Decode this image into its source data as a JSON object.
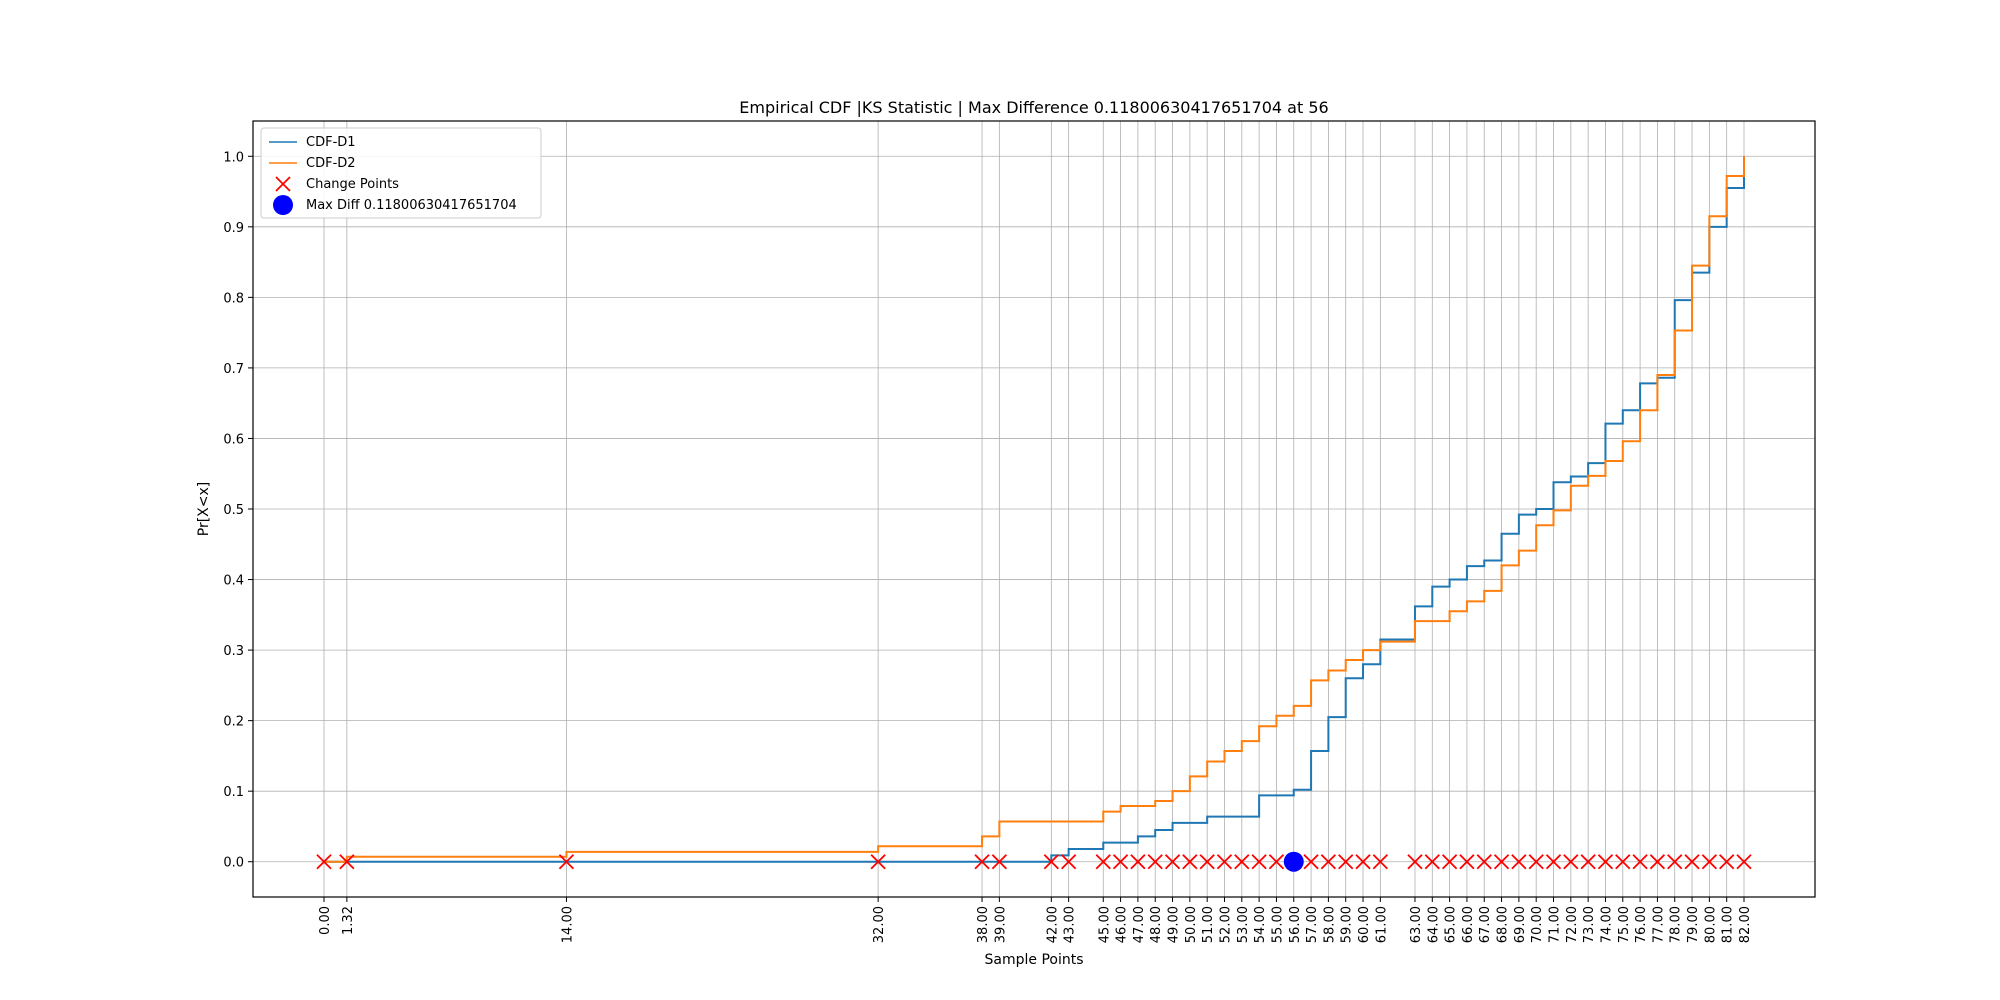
{
  "chart_data": {
    "type": "line",
    "title": "Empirical CDF |KS Statistic | Max Difference 0.11800630417651704 at 56",
    "xlabel": "Sample Points",
    "ylabel": "Pr[X<x]",
    "xlim": [
      -4.1,
      86.1
    ],
    "ylim": [
      -0.05,
      1.05
    ],
    "grid": true,
    "legend_position": "top-left",
    "yticks": [
      0.0,
      0.1,
      0.2,
      0.3,
      0.4,
      0.5,
      0.6,
      0.7,
      0.8,
      0.9,
      1.0
    ],
    "ytick_labels": [
      "0.0",
      "0.1",
      "0.2",
      "0.3",
      "0.4",
      "0.5",
      "0.6",
      "0.7",
      "0.8",
      "0.9",
      "1.0"
    ],
    "xticks": [
      0,
      1.32,
      14,
      32,
      38,
      39,
      42,
      43,
      45,
      46,
      47,
      48,
      49,
      50,
      51,
      52,
      53,
      54,
      55,
      56,
      57,
      58,
      59,
      60,
      61,
      63,
      64,
      65,
      66,
      67,
      68,
      69,
      70,
      71,
      72,
      73,
      74,
      75,
      76,
      77,
      78,
      79,
      80,
      81,
      82
    ],
    "xtick_labels": [
      "0.00",
      "1.32",
      "14.00",
      "32.00",
      "38.00",
      "39.00",
      "42.00",
      "43.00",
      "45.00",
      "46.00",
      "47.00",
      "48.00",
      "49.00",
      "50.00",
      "51.00",
      "52.00",
      "53.00",
      "54.00",
      "55.00",
      "56.00",
      "57.00",
      "58.00",
      "59.00",
      "60.00",
      "61.00",
      "63.00",
      "64.00",
      "65.00",
      "66.00",
      "67.00",
      "68.00",
      "69.00",
      "70.00",
      "71.00",
      "72.00",
      "73.00",
      "74.00",
      "75.00",
      "76.00",
      "77.00",
      "78.00",
      "79.00",
      "80.00",
      "81.00",
      "82.00"
    ],
    "series": [
      {
        "name": "CDF-D1",
        "color": "#1f77b4",
        "x": [
          0,
          1.32,
          14,
          32,
          38,
          39,
          42,
          43,
          45,
          46,
          47,
          48,
          49,
          50,
          51,
          52,
          53,
          54,
          55,
          56,
          57,
          58,
          59,
          60,
          61,
          63,
          64,
          65,
          66,
          67,
          68,
          69,
          70,
          71,
          72,
          73,
          74,
          75,
          76,
          77,
          78,
          79,
          80,
          81,
          82
        ],
        "y": [
          0,
          0,
          0,
          0,
          0,
          0,
          0.009,
          0.018,
          0.027,
          0.027,
          0.036,
          0.045,
          0.055,
          0.055,
          0.064,
          0.064,
          0.064,
          0.094,
          0.094,
          0.102,
          0.157,
          0.205,
          0.26,
          0.28,
          0.315,
          0.362,
          0.39,
          0.4,
          0.419,
          0.427,
          0.465,
          0.492,
          0.5,
          0.538,
          0.546,
          0.565,
          0.621,
          0.64,
          0.678,
          0.686,
          0.796,
          0.835,
          0.9,
          0.955,
          1.0
        ]
      },
      {
        "name": "CDF-D2",
        "color": "#ff7f0e",
        "x": [
          0,
          1.32,
          14,
          32,
          38,
          39,
          42,
          43,
          45,
          46,
          47,
          48,
          49,
          50,
          51,
          52,
          53,
          54,
          55,
          56,
          57,
          58,
          59,
          60,
          61,
          63,
          64,
          65,
          66,
          67,
          68,
          69,
          70,
          71,
          72,
          73,
          74,
          75,
          76,
          77,
          78,
          79,
          80,
          81,
          82
        ],
        "y": [
          0,
          0.007,
          0.014,
          0.022,
          0.036,
          0.057,
          0.057,
          0.057,
          0.071,
          0.079,
          0.079,
          0.086,
          0.1,
          0.121,
          0.142,
          0.157,
          0.171,
          0.192,
          0.207,
          0.221,
          0.257,
          0.271,
          0.286,
          0.3,
          0.312,
          0.341,
          0.341,
          0.355,
          0.369,
          0.384,
          0.42,
          0.441,
          0.477,
          0.498,
          0.533,
          0.547,
          0.568,
          0.596,
          0.64,
          0.69,
          0.753,
          0.845,
          0.915,
          0.972,
          1.0
        ]
      }
    ],
    "change_points": {
      "name": "Change Points",
      "color": "#ff0000",
      "x": [
        0,
        1.32,
        14,
        32,
        38,
        39,
        42,
        43,
        45,
        46,
        47,
        48,
        49,
        50,
        51,
        52,
        53,
        54,
        55,
        56,
        57,
        58,
        59,
        60,
        61,
        63,
        64,
        65,
        66,
        67,
        68,
        69,
        70,
        71,
        72,
        73,
        74,
        75,
        76,
        77,
        78,
        79,
        80,
        81,
        82
      ],
      "y": 0
    },
    "max_diff": {
      "name": "Max Diff 0.11800630417651704",
      "color": "#0000ff",
      "x": 56,
      "y": 0,
      "value": 0.11800630417651704
    }
  }
}
